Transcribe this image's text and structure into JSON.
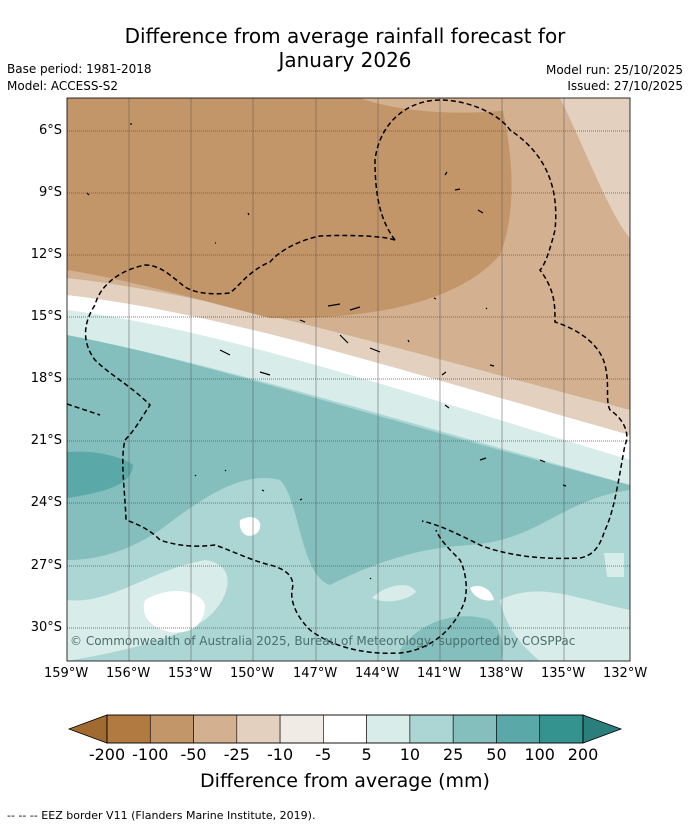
{
  "title_line1": "Difference from average rainfall forecast for",
  "title_line2": "January 2026",
  "base_period": "Base period: 1981-2018",
  "model": "Model: ACCESS-S2",
  "model_run": "Model run: 25/10/2025",
  "issued": "Issued: 27/10/2025",
  "map": {
    "lat_labels": [
      "6°S",
      "9°S",
      "12°S",
      "15°S",
      "18°S",
      "21°S",
      "24°S",
      "27°S",
      "30°S"
    ],
    "lon_labels": [
      "159°W",
      "156°W",
      "153°W",
      "150°W",
      "147°W",
      "144°W",
      "141°W",
      "138°W",
      "135°W",
      "132°W"
    ],
    "copyright": "© Commonwealth of Australia 2025, Bureau of Meteorology, supported by COSPPac"
  },
  "colorbar": {
    "tick_labels": [
      "-200",
      "-100",
      "-50",
      "-25",
      "-10",
      "-5",
      "5",
      "10",
      "25",
      "50",
      "100",
      "200"
    ],
    "colors": [
      "#b07a40",
      "#c29669",
      "#d3b08f",
      "#e4d0be",
      "#f1ebe6",
      "#ffffff",
      "#d8ecea",
      "#acd6d4",
      "#84bfbd",
      "#5ba8a8",
      "#35938f"
    ],
    "low_color": "#a06a30",
    "high_color": "#2a7f7c",
    "axis_title": "Difference from average (mm)"
  },
  "footnote": "--  --  -- EEZ border V11 (Flanders Marine Institute, 2019)."
}
